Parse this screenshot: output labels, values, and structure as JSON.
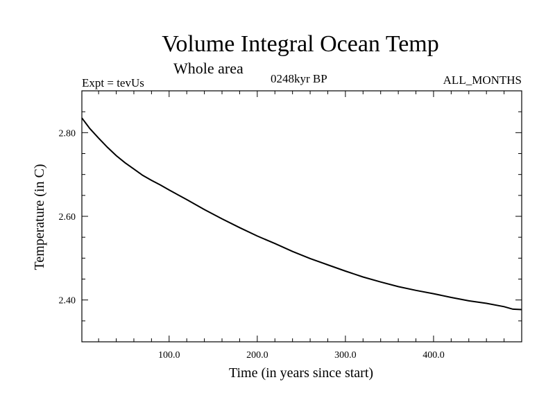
{
  "header": {
    "title": "Volume Integral Ocean Temp",
    "subtitle": "Whole area",
    "experiment": "Expt = tevUs",
    "period": "0248kyr BP",
    "months": "ALL_MONTHS"
  },
  "chart_data": {
    "type": "line",
    "title": "Volume Integral Ocean Temp",
    "subtitle": "Whole area",
    "xlabel": "Time (in years since start)",
    "ylabel": "Temperature (in C)",
    "xlim": [
      1,
      500
    ],
    "ylim": [
      2.3,
      2.9
    ],
    "x_ticks": [
      100.0,
      200.0,
      300.0,
      400.0
    ],
    "x_tick_labels": [
      "100.0",
      "200.0",
      "300.0",
      "400.0"
    ],
    "y_ticks": [
      2.4,
      2.6,
      2.8
    ],
    "y_tick_labels": [
      "2.40",
      "2.60",
      "2.80"
    ],
    "grid": false,
    "line_color": "#000000",
    "series": [
      {
        "x": [
          1,
          10,
          20,
          30,
          40,
          50,
          60,
          70,
          80,
          90,
          100,
          120,
          140,
          160,
          180,
          200,
          220,
          240,
          260,
          280,
          300,
          320,
          340,
          360,
          380,
          400,
          420,
          440,
          460,
          480,
          490,
          500
        ],
        "values": [
          2.835,
          2.81,
          2.787,
          2.765,
          2.745,
          2.728,
          2.713,
          2.698,
          2.686,
          2.675,
          2.663,
          2.64,
          2.616,
          2.594,
          2.573,
          2.553,
          2.535,
          2.516,
          2.499,
          2.484,
          2.469,
          2.455,
          2.443,
          2.432,
          2.423,
          2.415,
          2.406,
          2.398,
          2.392,
          2.384,
          2.378,
          2.377
        ]
      }
    ]
  }
}
